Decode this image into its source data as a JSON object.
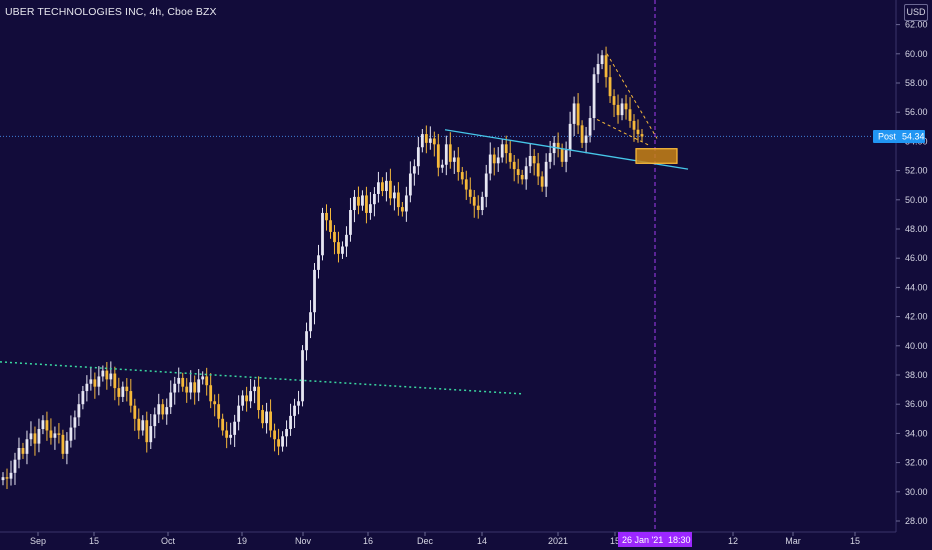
{
  "header": {
    "title": "UBER TECHNOLOGIES INC, 4h, Cboe BZX",
    "currency": "USD"
  },
  "price_tag": {
    "label": "Post",
    "value": "54.34"
  },
  "crosshair": {
    "date_label": "26 Jan '21",
    "time_label": "18:30"
  },
  "colors": {
    "background": "#120c3a",
    "up_candle": "#e6e6f2",
    "down_candle": "#f5b93a",
    "support_line": "#3ad8a0",
    "trend_line": "#46c6e8",
    "wedge_lines": "#f5b93a",
    "target_box": "#f5a623",
    "crosshair": "#a23cf0",
    "price_tag": "#2196f3"
  },
  "chart_data": {
    "type": "candlestick",
    "title": "UBER TECHNOLOGIES INC, 4h, Cboe BZX",
    "y_axis": {
      "ticks": [
        "28.00",
        "30.00",
        "32.00",
        "34.00",
        "36.00",
        "38.00",
        "40.00",
        "42.00",
        "44.00",
        "46.00",
        "48.00",
        "50.00",
        "52.00",
        "54.00",
        "56.00",
        "58.00",
        "60.00",
        "62.00"
      ],
      "range": [
        27.0,
        64.0
      ]
    },
    "x_axis": {
      "ticks": [
        "Sep",
        "15",
        "Oct",
        "19",
        "Nov",
        "16",
        "Dec",
        "14",
        "2021",
        "15",
        "12",
        "Mar",
        "15"
      ]
    },
    "close_series": [
      31.0,
      30.9,
      31.3,
      32.2,
      33.0,
      32.6,
      33.6,
      34.0,
      33.3,
      34.3,
      34.9,
      34.2,
      33.7,
      34.0,
      33.9,
      32.6,
      33.5,
      34.4,
      35.1,
      36.0,
      36.9,
      37.4,
      37.7,
      37.2,
      37.9,
      38.3,
      37.7,
      38.1,
      37.1,
      36.5,
      37.2,
      36.9,
      35.9,
      35.0,
      34.2,
      34.9,
      33.4,
      34.5,
      35.3,
      36.0,
      35.3,
      35.8,
      36.8,
      37.4,
      37.8,
      37.2,
      36.8,
      37.5,
      36.8,
      37.7,
      37.9,
      37.3,
      36.2,
      36.0,
      35.0,
      34.2,
      33.7,
      33.9,
      34.8,
      35.9,
      36.6,
      36.2,
      36.9,
      37.2,
      35.6,
      34.7,
      35.5,
      34.2,
      33.6,
      33.1,
      33.8,
      34.3,
      35.2,
      35.9,
      36.2,
      39.7,
      41.0,
      42.3,
      45.2,
      46.2,
      49.1,
      48.6,
      47.8,
      47.1,
      46.3,
      46.8,
      47.6,
      49.3,
      50.2,
      49.6,
      50.3,
      49.1,
      49.7,
      50.4,
      51.2,
      50.6,
      51.3,
      50.1,
      50.5,
      49.5,
      49.2,
      50.3,
      51.8,
      52.3,
      53.6,
      54.5,
      53.9,
      54.2,
      53.8,
      52.2,
      52.4,
      53.8,
      52.6,
      52.9,
      51.9,
      51.4,
      50.7,
      50.2,
      49.6,
      49.3,
      50.2,
      51.8,
      53.1,
      52.5,
      52.9,
      53.8,
      53.2,
      52.6,
      52.1,
      51.7,
      51.4,
      52.3,
      53.0,
      52.5,
      51.6,
      50.9,
      52.6,
      53.2,
      53.9,
      53.5,
      52.6,
      53.4,
      55.2,
      56.6,
      55.1,
      53.9,
      54.4,
      55.6,
      58.6,
      59.3,
      59.9,
      58.4,
      57.1,
      56.5,
      55.8,
      56.6,
      56.2,
      55.4,
      54.8,
      54.5,
      54.34
    ],
    "support_line_y": [
      38.9,
      36.7
    ],
    "trend_line_y": [
      54.8,
      52.1
    ],
    "wedge_top_y": [
      60.0,
      54.2
    ],
    "wedge_bottom_y": [
      55.5,
      53.7
    ],
    "target_zone_y": [
      52.5,
      53.5
    ],
    "last_price": 54.34,
    "grid": false
  }
}
